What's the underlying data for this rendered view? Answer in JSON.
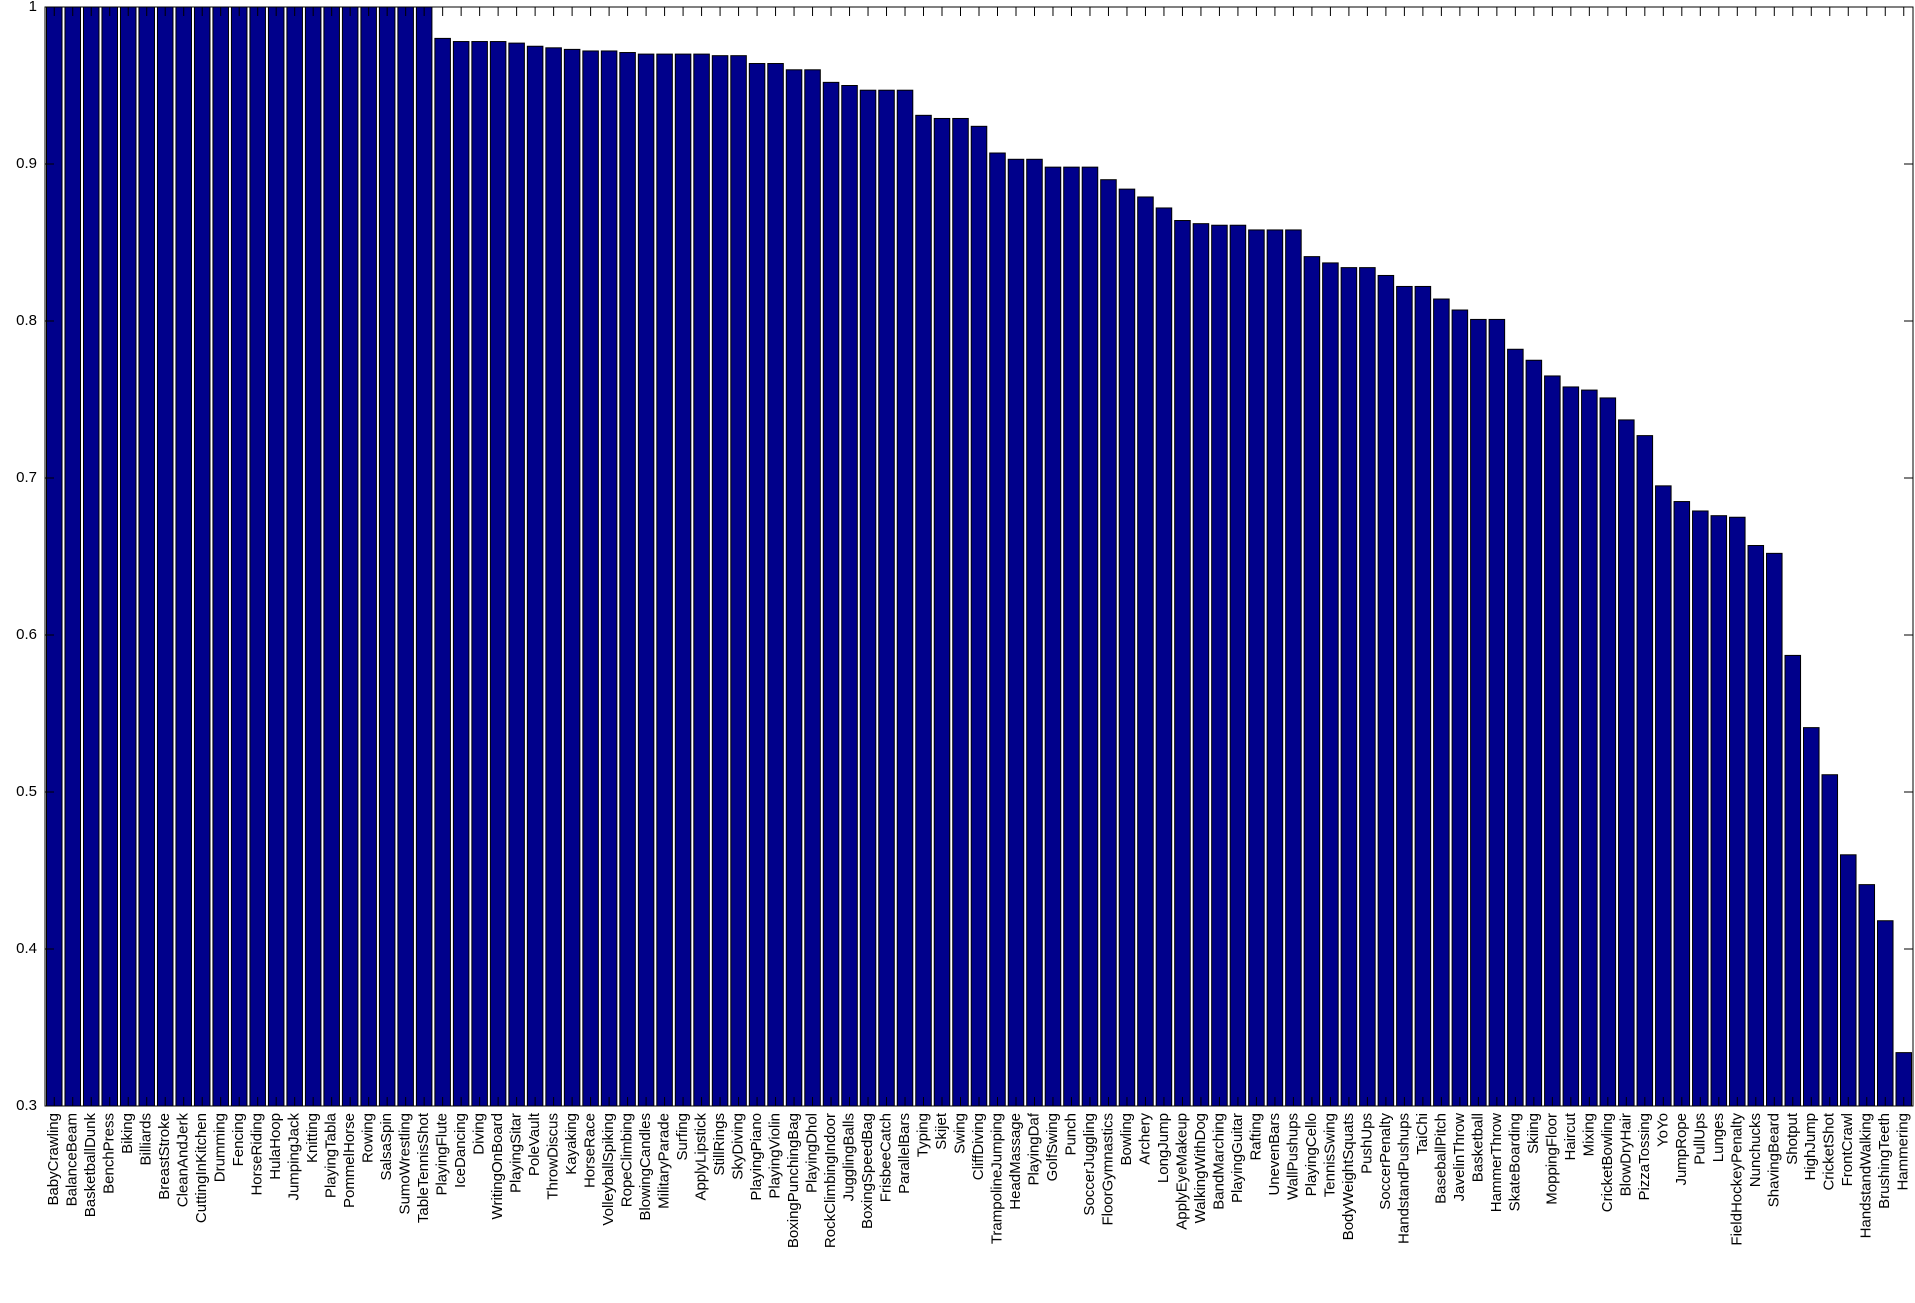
{
  "chart_data": {
    "type": "bar",
    "color": "#00008b",
    "categories": [
      "BabyCrawling",
      "BalanceBeam",
      "BasketballDunk",
      "BenchPress",
      "Biking",
      "Billiards",
      "BreastStroke",
      "CleanAndJerk",
      "CuttingInKitchen",
      "Drumming",
      "Fencing",
      "HorseRiding",
      "HulaHoop",
      "JumpingJack",
      "Knitting",
      "PlayingTabla",
      "PommelHorse",
      "Rowing",
      "SalsaSpin",
      "SumoWrestling",
      "TableTennisShot",
      "PlayingFlute",
      "IceDancing",
      "Diving",
      "WritingOnBoard",
      "PlayingSitar",
      "PoleVault",
      "ThrowDiscus",
      "Kayaking",
      "HorseRace",
      "VolleyballSpiking",
      "RopeClimbing",
      "BlowingCandles",
      "MilitaryParade",
      "Surfing",
      "ApplyLipstick",
      "StillRings",
      "SkyDiving",
      "PlayingPiano",
      "PlayingViolin",
      "BoxingPunchingBag",
      "PlayingDhol",
      "RockClimbingIndoor",
      "JugglingBalls",
      "BoxingSpeedBag",
      "FrisbeeCatch",
      "ParallelBars",
      "Typing",
      "Skijet",
      "Swing",
      "CliffDiving",
      "TrampolineJumping",
      "HeadMassage",
      "PlayingDaf",
      "GolfSwing",
      "Punch",
      "SoccerJuggling",
      "FloorGymnastics",
      "Bowling",
      "Archery",
      "LongJump",
      "ApplyEyeMakeup",
      "WalkingWithDog",
      "BandMarching",
      "PlayingGuitar",
      "Rafting",
      "UnevenBars",
      "WallPushups",
      "PlayingCello",
      "TennisSwing",
      "BodyWeightSquats",
      "PushUps",
      "SoccerPenalty",
      "HandstandPushups",
      "TaiChi",
      "BaseballPitch",
      "JavelinThrow",
      "Basketball",
      "HammerThrow",
      "SkateBoarding",
      "Skiing",
      "MoppingFloor",
      "Haircut",
      "Mixing",
      "CricketBowling",
      "BlowDryHair",
      "PizzaTossing",
      "YoYo",
      "JumpRope",
      "PullUps",
      "Lunges",
      "FieldHockeyPenalty",
      "Nunchucks",
      "ShavingBeard",
      "Shotput",
      "HighJump",
      "CricketShot",
      "FrontCrawl",
      "HandstandWalking",
      "BrushingTeeth",
      "Hammering"
    ],
    "values": [
      1,
      1,
      1,
      1,
      1,
      1,
      1,
      1,
      1,
      1,
      1,
      1,
      1,
      1,
      1,
      1,
      1,
      1,
      1,
      1,
      1,
      0.98,
      0.978,
      0.978,
      0.978,
      0.977,
      0.975,
      0.974,
      0.973,
      0.972,
      0.972,
      0.971,
      0.97,
      0.97,
      0.97,
      0.97,
      0.969,
      0.969,
      0.964,
      0.964,
      0.96,
      0.96,
      0.952,
      0.95,
      0.947,
      0.947,
      0.947,
      0.931,
      0.929,
      0.929,
      0.924,
      0.907,
      0.903,
      0.903,
      0.898,
      0.898,
      0.898,
      0.89,
      0.884,
      0.879,
      0.872,
      0.864,
      0.862,
      0.861,
      0.861,
      0.858,
      0.858,
      0.858,
      0.841,
      0.837,
      0.834,
      0.834,
      0.829,
      0.822,
      0.822,
      0.814,
      0.807,
      0.801,
      0.801,
      0.782,
      0.775,
      0.765,
      0.758,
      0.756,
      0.751,
      0.737,
      0.727,
      0.695,
      0.685,
      0.679,
      0.676,
      0.675,
      0.657,
      0.652,
      0.587,
      0.541,
      0.511,
      0.46,
      0.441,
      0.418,
      0.334
    ],
    "ylim": [
      0.3,
      1
    ],
    "yticks": [
      0.3,
      0.4,
      0.5,
      0.6,
      0.7,
      0.8,
      0.9,
      1
    ]
  }
}
